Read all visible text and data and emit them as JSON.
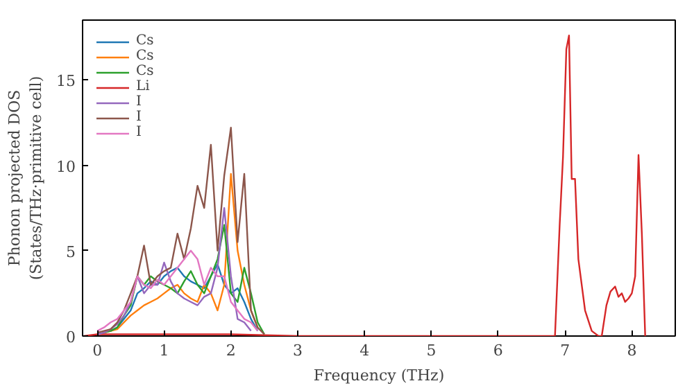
{
  "chart_data": {
    "type": "line",
    "xlabel": "Frequency (THz)",
    "ylabel": "Phonon projected DOS\n(States/THz·primitive cell)",
    "xlim": [
      -0.22,
      8.65
    ],
    "ylim": [
      0,
      18.5
    ],
    "xticks": [
      0,
      1,
      2,
      3,
      4,
      5,
      6,
      7,
      8
    ],
    "yticks": [
      0,
      5,
      10,
      15
    ],
    "grid": false,
    "legend": "top left",
    "series": [
      {
        "name": "Cs",
        "color": "#1f77b4",
        "x": [
          0.2,
          0.3,
          0.4,
          0.5,
          0.6,
          0.7,
          0.8,
          0.9,
          1.0,
          1.1,
          1.2,
          1.3,
          1.4,
          1.5,
          1.6,
          1.7,
          1.8,
          1.9,
          2.0,
          2.1,
          2.2,
          2.3,
          2.4
        ],
        "values": [
          0.3,
          0.5,
          1.0,
          1.5,
          2.5,
          2.8,
          3.2,
          3.0,
          3.5,
          3.8,
          4.0,
          3.5,
          3.2,
          3.0,
          2.8,
          3.5,
          4.2,
          3.0,
          2.5,
          2.8,
          2.0,
          1.0,
          0.3
        ]
      },
      {
        "name": "Cs",
        "color": "#ff7f0e",
        "x": [
          0,
          0.1,
          0.2,
          0.3,
          0.4,
          0.5,
          0.6,
          0.7,
          0.8,
          0.9,
          1.0,
          1.1,
          1.2,
          1.3,
          1.4,
          1.5,
          1.6,
          1.7,
          1.8,
          1.9,
          2.0,
          2.1,
          2.2,
          2.3,
          2.4
        ],
        "values": [
          0.1,
          0.2,
          0.3,
          0.4,
          0.8,
          1.2,
          1.5,
          1.8,
          2.0,
          2.2,
          2.5,
          2.8,
          3.0,
          2.5,
          2.2,
          2.0,
          3.0,
          2.5,
          1.5,
          3.0,
          9.5,
          5.0,
          3.0,
          1.5,
          0.5
        ]
      },
      {
        "name": "Cs",
        "color": "#2ca02c",
        "x": [
          0,
          0.1,
          0.2,
          0.3,
          0.4,
          0.5,
          0.6,
          0.7,
          0.8,
          0.9,
          1.0,
          1.1,
          1.2,
          1.3,
          1.4,
          1.5,
          1.6,
          1.7,
          1.8,
          1.9,
          2.0,
          2.1,
          2.2,
          2.3,
          2.4,
          2.5
        ],
        "values": [
          0.1,
          0.2,
          0.3,
          0.5,
          1.2,
          1.8,
          3.5,
          3.0,
          3.5,
          3.2,
          3.0,
          2.8,
          2.5,
          3.2,
          3.8,
          3.0,
          2.5,
          3.5,
          4.5,
          6.5,
          2.5,
          2.0,
          4.0,
          2.5,
          0.8,
          0.1
        ]
      },
      {
        "name": "Li",
        "color": "#d62728",
        "x": [
          -0.2,
          0,
          1,
          2,
          3,
          6.85,
          6.92,
          6.97,
          7.02,
          7.06,
          7.1,
          7.15,
          7.2,
          7.25,
          7.3,
          7.4,
          7.5,
          7.55,
          7.62,
          7.68,
          7.75,
          7.8,
          7.85,
          7.9,
          7.95,
          8.0,
          8.05,
          8.1,
          8.15,
          8.2
        ],
        "values": [
          0,
          0.1,
          0.1,
          0.1,
          0,
          0,
          6.5,
          10.5,
          16.8,
          17.6,
          9.2,
          9.2,
          4.5,
          3.0,
          1.5,
          0.3,
          0,
          0,
          1.8,
          2.6,
          2.9,
          2.3,
          2.5,
          2.0,
          2.2,
          2.5,
          3.5,
          10.6,
          6.0,
          0
        ]
      },
      {
        "name": "I",
        "color": "#9467bd",
        "x": [
          0,
          0.1,
          0.2,
          0.3,
          0.4,
          0.5,
          0.6,
          0.7,
          0.8,
          0.9,
          1.0,
          1.1,
          1.2,
          1.3,
          1.4,
          1.5,
          1.6,
          1.7,
          1.8,
          1.9,
          2.0,
          2.1,
          2.2,
          2.3
        ],
        "values": [
          0.1,
          0.2,
          0.4,
          0.7,
          1.2,
          2.0,
          3.5,
          2.5,
          3.0,
          3.0,
          4.3,
          3.2,
          2.5,
          2.2,
          2.0,
          1.8,
          2.3,
          2.5,
          4.0,
          7.5,
          3.5,
          1.0,
          0.8,
          0.3
        ]
      },
      {
        "name": "I",
        "color": "#8c564b",
        "x": [
          0,
          0.1,
          0.2,
          0.3,
          0.4,
          0.5,
          0.6,
          0.7,
          0.8,
          0.9,
          1.0,
          1.1,
          1.2,
          1.3,
          1.4,
          1.5,
          1.6,
          1.7,
          1.8,
          1.9,
          2.0,
          2.1,
          2.2,
          2.3,
          2.4,
          2.5
        ],
        "values": [
          0.2,
          0.3,
          0.4,
          0.8,
          1.5,
          2.5,
          3.5,
          5.3,
          3.0,
          3.5,
          3.8,
          4.0,
          6.0,
          4.5,
          6.3,
          8.8,
          7.5,
          11.2,
          5.0,
          9.4,
          12.2,
          5.5,
          9.5,
          1.5,
          0.5,
          0.1
        ]
      },
      {
        "name": "I",
        "color": "#e377c2",
        "x": [
          0,
          0.1,
          0.2,
          0.3,
          0.4,
          0.5,
          0.6,
          0.7,
          0.8,
          0.9,
          1.0,
          1.1,
          1.2,
          1.3,
          1.4,
          1.5,
          1.6,
          1.7,
          1.8,
          1.9,
          2.0,
          2.1,
          2.2,
          2.3,
          2.4
        ],
        "values": [
          0.3,
          0.5,
          0.8,
          1.0,
          1.5,
          2.0,
          3.5,
          3.0,
          2.8,
          3.3,
          3.0,
          3.5,
          4.0,
          4.5,
          5.0,
          4.5,
          3.0,
          4.0,
          3.5,
          3.5,
          2.0,
          1.5,
          1.0,
          0.8,
          0.3
        ]
      }
    ]
  }
}
